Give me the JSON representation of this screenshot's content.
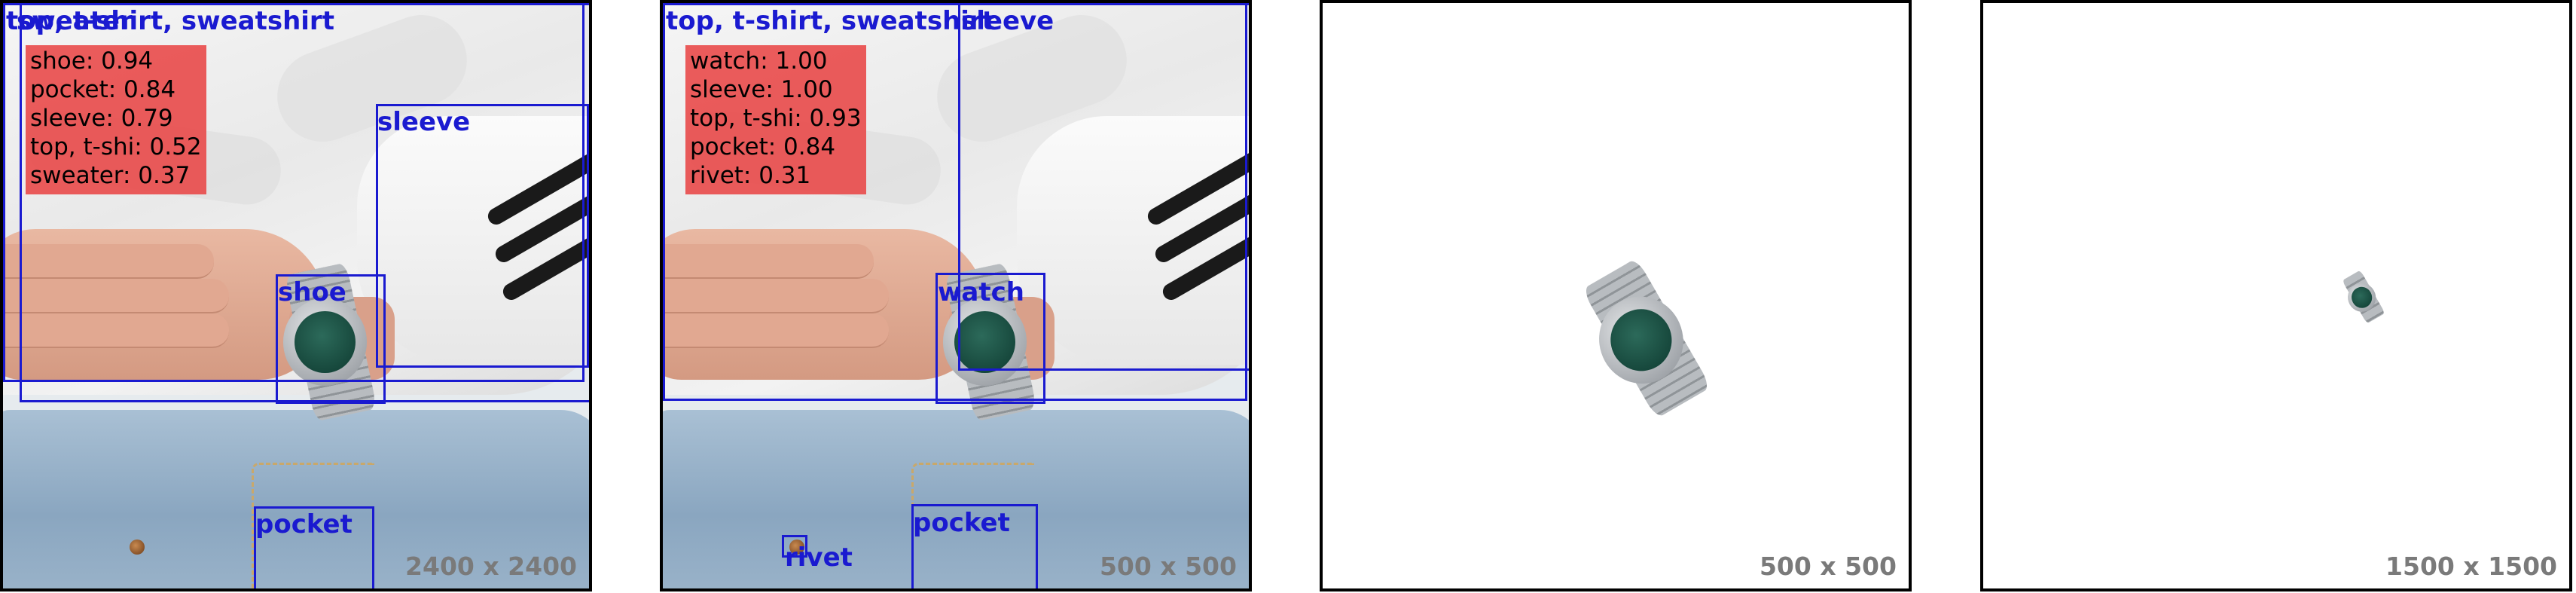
{
  "panels": [
    {
      "dimensions": "2400 x 2400",
      "scores": [
        "shoe: 0.94",
        "pocket: 0.84",
        "sleeve: 0.79",
        "top, t-shi: 0.52",
        "sweater: 0.37"
      ],
      "box_labels": {
        "top": "top, t-shirt, sweatshirt",
        "sweater": "sweater",
        "sleeve": "sleeve",
        "shoe": "shoe",
        "pocket": "pocket"
      }
    },
    {
      "dimensions": "500 x 500",
      "scores": [
        "watch: 1.00",
        "sleeve: 1.00",
        "top, t-shi: 0.93",
        "pocket: 0.84",
        "rivet: 0.31"
      ],
      "box_labels": {
        "top": "top, t-shirt, sweatshirt",
        "sleeve": "sleeve",
        "watch": "watch",
        "pocket": "pocket",
        "rivet": "rivet"
      }
    },
    {
      "dimensions": "500 x 500"
    },
    {
      "dimensions": "1500 x 1500"
    }
  ],
  "colors": {
    "box": "#1a1ad0",
    "score_bg": "#e84646",
    "dim_text": "#7a7a7a"
  }
}
